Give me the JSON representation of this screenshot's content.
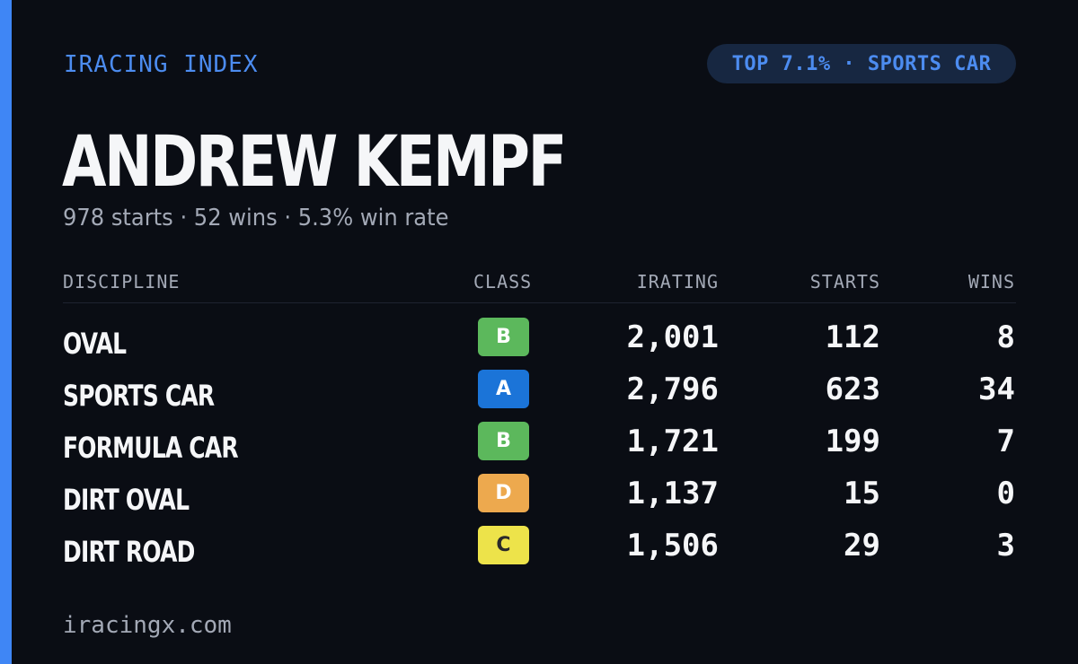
{
  "header": {
    "brand": "IRACING INDEX",
    "rank_badge": "TOP 7.1% · SPORTS CAR"
  },
  "driver": {
    "name": "ANDREW KEMPF",
    "summary": "978 starts · 52 wins · 5.3% win rate"
  },
  "table": {
    "columns": {
      "discipline": "DISCIPLINE",
      "class": "CLASS",
      "irating": "IRATING",
      "starts": "STARTS",
      "wins": "WINS"
    },
    "rows": [
      {
        "discipline": "OVAL",
        "class": "B",
        "irating": "2,001",
        "starts": "112",
        "wins": "8",
        "class_color": "#5cb85c",
        "class_text_color": "#ffffff"
      },
      {
        "discipline": "SPORTS CAR",
        "class": "A",
        "irating": "2,796",
        "starts": "623",
        "wins": "34",
        "class_color": "#1b74d8",
        "class_text_color": "#ffffff"
      },
      {
        "discipline": "FORMULA CAR",
        "class": "B",
        "irating": "1,721",
        "starts": "199",
        "wins": "7",
        "class_color": "#5cb85c",
        "class_text_color": "#ffffff"
      },
      {
        "discipline": "DIRT OVAL",
        "class": "D",
        "irating": "1,137",
        "starts": "15",
        "wins": "0",
        "class_color": "#eda94e",
        "class_text_color": "#ffffff"
      },
      {
        "discipline": "DIRT ROAD",
        "class": "C",
        "irating": "1,506",
        "starts": "29",
        "wins": "3",
        "class_color": "#ede34a",
        "class_text_color": "#2a2a2a"
      }
    ]
  },
  "footer": {
    "site": "iracingx.com"
  },
  "colors": {
    "background": "#0a0d14",
    "accent": "#3f86f5",
    "badge_bg": "#172741",
    "text_primary": "#f5f6f8",
    "text_muted": "#a3a9b6"
  }
}
